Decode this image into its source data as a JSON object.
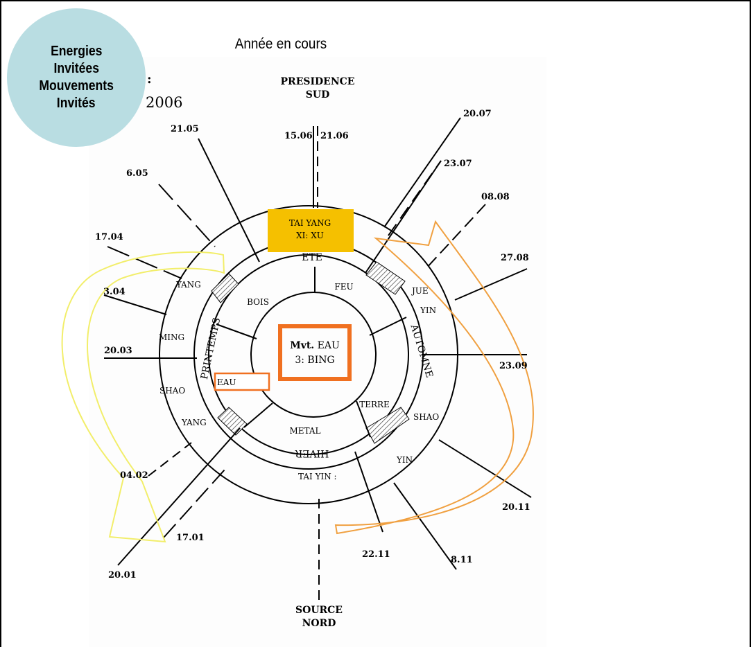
{
  "badge": {
    "lines": [
      "Energies",
      "Invitées",
      "Mouvements",
      "Invités"
    ]
  },
  "page_title": "Année en cours",
  "header": {
    "colon": ":",
    "year": "2006"
  },
  "directions": {
    "south": [
      "PRESIDENCE",
      "SUD"
    ],
    "north": [
      "SOURCE",
      "NORD"
    ]
  },
  "seasons": {
    "summer": "ETE",
    "spring": "PRINTEMPS",
    "autumn": "AUTOMNE",
    "winter": "HIVER"
  },
  "elements": {
    "fire": "FEU",
    "wood": "BOIS",
    "earth": "TERRE",
    "metal": "METAL",
    "water": "EAU"
  },
  "center": {
    "line1_bold": "Mvt.",
    "line1_rest": "EAU",
    "line2": "3: BING"
  },
  "top_box": {
    "line1": "TAI YANG",
    "line2": "XI: XU"
  },
  "energies": {
    "yang_1": "YANG",
    "ming": "MING",
    "shao_1": "SHAO",
    "yang_2": "YANG",
    "jue": "JUE",
    "yin_1": "YIN",
    "shao_2": "SHAO",
    "yin_2": "YIN",
    "tai_yin": "TAI YIN :"
  },
  "dates": {
    "d1505": "15.06",
    "d2106": "21.06",
    "d2105": "21.05",
    "d0605": "6.05",
    "d1704": "17.04",
    "d0304": "3.04",
    "d2003": "20.03",
    "d0402": "04.02",
    "d1701": "17.01",
    "d2001": "20.01",
    "d2007": "20.07",
    "d2307": "23.07",
    "d0808": "08.08",
    "d2708": "27.08",
    "d2309": "23.09",
    "d2011": "20.11",
    "d2211": "22.11",
    "d0811": "8.11"
  },
  "colors": {
    "badge_fill": "#b9dde2",
    "box_fill": "#f5c000",
    "accent_orange": "#f07020",
    "yellow_arrow": "#f2ee6a",
    "orange_arrow": "#f0a040"
  }
}
